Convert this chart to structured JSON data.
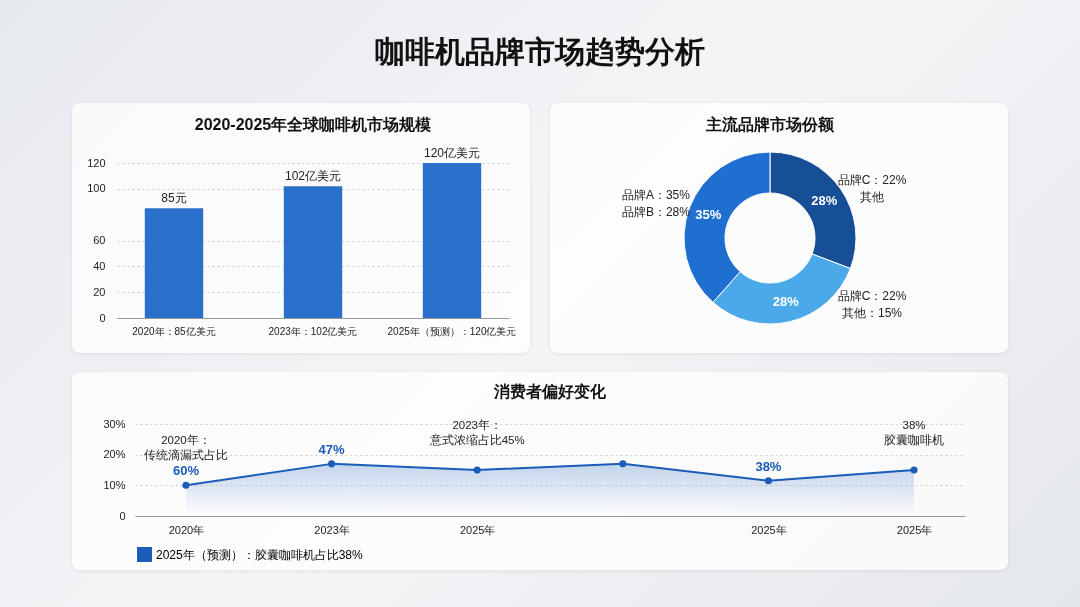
{
  "chart_data": [
    {
      "type": "other",
      "title": "咖啡机品牌市场趋势分析"
    },
    {
      "type": "bar",
      "title": "2020-2025年全球咖啡机市场规模",
      "categories": [
        "2020年：85亿美元",
        "2023年：102亿美元",
        "2025年（预测）：120亿美元"
      ],
      "values": [
        85,
        102,
        120
      ],
      "value_labels": [
        "85元",
        "102亿美元",
        "120亿美元"
      ],
      "color": "#2a6fc9",
      "ylim": [
        0,
        120
      ],
      "yticks": [
        0,
        20,
        40,
        60,
        100,
        120
      ],
      "grid": "y"
    },
    {
      "type": "donut",
      "title": "主流品牌市场份额",
      "categories": [
        "品牌C：22%\n其他",
        "品牌C：22%\n其他：15%",
        "品牌A：35%\n品牌B：28%"
      ],
      "values": [
        28,
        28,
        35
      ],
      "colors": [
        "#174f96",
        "#4ba9ea",
        "#1f6fd1"
      ],
      "value_labels": [
        "28%",
        "28%",
        "35%"
      ]
    },
    {
      "type": "area",
      "title": "消费者偏好变化",
      "categories": [
        "2020年",
        "2023年",
        "2025年",
        null,
        "2025年",
        "2025年"
      ],
      "series": [
        {
          "name": "2025年（预测）：胶囊咖啡机占比38%",
          "color": "#1a5cb8",
          "values": [
            10,
            17,
            15,
            17,
            11.5,
            15
          ]
        }
      ],
      "ylim": [
        0,
        30
      ],
      "yticks": [
        0,
        {
          "value": 10,
          "label": "10%"
        },
        {
          "value": 20,
          "label": "20%"
        },
        {
          "value": 30,
          "label": "30%"
        }
      ],
      "grid": "y",
      "legend": "bottom",
      "marker": "circle",
      "annotations": [
        "2020年：传统滴漏式占比",
        "60%",
        "47%",
        "2023年：意式浓缩占比45%",
        "38%",
        "38%\n胶囊咖啡机"
      ]
    }
  ]
}
